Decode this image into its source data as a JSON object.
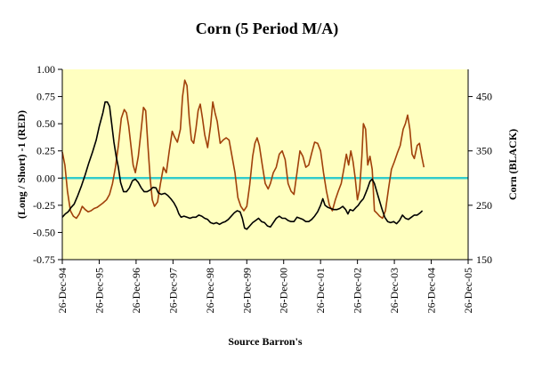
{
  "chart_data": {
    "type": "line",
    "title": "Corn (5 Period M/A)",
    "xlabel": "Source Barron's",
    "ylabel_left": "(Long / Short) -1 (RED)",
    "ylabel_right": "Corn (BLACK)",
    "x_tick_labels": [
      "26-Dec-94",
      "26-Dec-95",
      "26-Dec-96",
      "26-Dec-97",
      "26-Dec-98",
      "26-Dec-99",
      "26-Dec-00",
      "26-Dec-01",
      "26-Dec-02",
      "26-Dec-03",
      "26-Dec-04",
      "26-Dec-05"
    ],
    "xlim": [
      1994.98,
      2005.98
    ],
    "ylim_left": [
      -0.75,
      1.0
    ],
    "ylim_right": [
      150,
      500
    ],
    "y_ticks_left": [
      "1.00",
      "0.75",
      "0.50",
      "0.25",
      "0.00",
      "-0.25",
      "-0.50",
      "-0.75"
    ],
    "y_ticks_right": [
      "450",
      "350",
      "250",
      "150"
    ],
    "grid": false,
    "plot_background": "#ffffc0",
    "reference_line": {
      "y": 0.0,
      "color": "#33cccc"
    },
    "series": [
      {
        "name": "(Long / Short) -1 (RED)",
        "axis": "left",
        "color": "#a0400a",
        "points": [
          [
            1994.98,
            0.24
          ],
          [
            1995.05,
            0.12
          ],
          [
            1995.12,
            -0.12
          ],
          [
            1995.2,
            -0.3
          ],
          [
            1995.28,
            -0.35
          ],
          [
            1995.36,
            -0.37
          ],
          [
            1995.44,
            -0.33
          ],
          [
            1995.52,
            -0.26
          ],
          [
            1995.6,
            -0.29
          ],
          [
            1995.68,
            -0.31
          ],
          [
            1995.76,
            -0.3
          ],
          [
            1995.84,
            -0.28
          ],
          [
            1995.92,
            -0.27
          ],
          [
            1996.0,
            -0.25
          ],
          [
            1996.08,
            -0.23
          ],
          [
            1996.18,
            -0.2
          ],
          [
            1996.26,
            -0.15
          ],
          [
            1996.34,
            -0.05
          ],
          [
            1996.42,
            0.1
          ],
          [
            1996.5,
            0.3
          ],
          [
            1996.58,
            0.55
          ],
          [
            1996.66,
            0.63
          ],
          [
            1996.72,
            0.6
          ],
          [
            1996.78,
            0.48
          ],
          [
            1996.84,
            0.3
          ],
          [
            1996.9,
            0.12
          ],
          [
            1996.96,
            0.05
          ],
          [
            1997.04,
            0.2
          ],
          [
            1997.12,
            0.45
          ],
          [
            1997.18,
            0.65
          ],
          [
            1997.24,
            0.62
          ],
          [
            1997.3,
            0.3
          ],
          [
            1997.36,
            0.0
          ],
          [
            1997.42,
            -0.2
          ],
          [
            1997.48,
            -0.26
          ],
          [
            1997.56,
            -0.22
          ],
          [
            1997.64,
            -0.05
          ],
          [
            1997.72,
            0.1
          ],
          [
            1997.8,
            0.05
          ],
          [
            1997.88,
            0.25
          ],
          [
            1997.96,
            0.43
          ],
          [
            1998.02,
            0.38
          ],
          [
            1998.1,
            0.33
          ],
          [
            1998.18,
            0.45
          ],
          [
            1998.24,
            0.75
          ],
          [
            1998.3,
            0.9
          ],
          [
            1998.36,
            0.85
          ],
          [
            1998.42,
            0.55
          ],
          [
            1998.48,
            0.35
          ],
          [
            1998.54,
            0.32
          ],
          [
            1998.6,
            0.45
          ],
          [
            1998.66,
            0.62
          ],
          [
            1998.72,
            0.68
          ],
          [
            1998.78,
            0.55
          ],
          [
            1998.84,
            0.4
          ],
          [
            1998.92,
            0.28
          ],
          [
            1999.0,
            0.48
          ],
          [
            1999.06,
            0.7
          ],
          [
            1999.12,
            0.6
          ],
          [
            1999.18,
            0.52
          ],
          [
            1999.26,
            0.32
          ],
          [
            1999.34,
            0.35
          ],
          [
            1999.42,
            0.37
          ],
          [
            1999.5,
            0.35
          ],
          [
            1999.58,
            0.2
          ],
          [
            1999.66,
            0.05
          ],
          [
            1999.74,
            -0.18
          ],
          [
            1999.82,
            -0.26
          ],
          [
            1999.9,
            -0.3
          ],
          [
            1999.98,
            -0.26
          ],
          [
            2000.06,
            -0.06
          ],
          [
            2000.14,
            0.2
          ],
          [
            2000.2,
            0.32
          ],
          [
            2000.26,
            0.37
          ],
          [
            2000.32,
            0.3
          ],
          [
            2000.4,
            0.12
          ],
          [
            2000.48,
            -0.05
          ],
          [
            2000.56,
            -0.1
          ],
          [
            2000.62,
            -0.05
          ],
          [
            2000.7,
            0.05
          ],
          [
            2000.78,
            0.1
          ],
          [
            2000.86,
            0.22
          ],
          [
            2000.94,
            0.25
          ],
          [
            2001.02,
            0.17
          ],
          [
            2001.1,
            -0.05
          ],
          [
            2001.18,
            -0.12
          ],
          [
            2001.26,
            -0.15
          ],
          [
            2001.34,
            0.05
          ],
          [
            2001.42,
            0.25
          ],
          [
            2001.5,
            0.2
          ],
          [
            2001.58,
            0.1
          ],
          [
            2001.66,
            0.12
          ],
          [
            2001.74,
            0.23
          ],
          [
            2001.82,
            0.33
          ],
          [
            2001.9,
            0.32
          ],
          [
            2001.98,
            0.25
          ],
          [
            2002.06,
            0.05
          ],
          [
            2002.14,
            -0.12
          ],
          [
            2002.22,
            -0.25
          ],
          [
            2002.3,
            -0.3
          ],
          [
            2002.38,
            -0.2
          ],
          [
            2002.46,
            -0.12
          ],
          [
            2002.54,
            -0.05
          ],
          [
            2002.62,
            0.1
          ],
          [
            2002.68,
            0.22
          ],
          [
            2002.74,
            0.12
          ],
          [
            2002.8,
            0.25
          ],
          [
            2002.86,
            0.15
          ],
          [
            2002.92,
            0.0
          ],
          [
            2002.98,
            -0.2
          ],
          [
            2003.04,
            -0.1
          ],
          [
            2003.1,
            0.2
          ],
          [
            2003.14,
            0.5
          ],
          [
            2003.2,
            0.45
          ],
          [
            2003.26,
            0.12
          ],
          [
            2003.32,
            0.2
          ],
          [
            2003.38,
            0.08
          ],
          [
            2003.44,
            -0.3
          ],
          [
            2003.5,
            -0.32
          ],
          [
            2003.58,
            -0.35
          ],
          [
            2003.66,
            -0.37
          ],
          [
            2003.74,
            -0.3
          ],
          [
            2003.82,
            -0.1
          ],
          [
            2003.9,
            0.08
          ],
          [
            2003.98,
            0.15
          ],
          [
            2004.06,
            0.23
          ],
          [
            2004.14,
            0.3
          ],
          [
            2004.22,
            0.45
          ],
          [
            2004.28,
            0.5
          ],
          [
            2004.34,
            0.58
          ],
          [
            2004.4,
            0.45
          ],
          [
            2004.46,
            0.22
          ],
          [
            2004.52,
            0.18
          ],
          [
            2004.6,
            0.3
          ],
          [
            2004.66,
            0.32
          ],
          [
            2004.72,
            0.2
          ],
          [
            2004.78,
            0.1
          ]
        ]
      },
      {
        "name": "Corn (BLACK)",
        "axis": "right",
        "color": "#000000",
        "points": [
          [
            1994.98,
            228
          ],
          [
            1995.06,
            234
          ],
          [
            1995.14,
            238
          ],
          [
            1995.22,
            246
          ],
          [
            1995.3,
            252
          ],
          [
            1995.4,
            268
          ],
          [
            1995.5,
            286
          ],
          [
            1995.6,
            306
          ],
          [
            1995.7,
            328
          ],
          [
            1995.8,
            348
          ],
          [
            1995.9,
            370
          ],
          [
            1995.98,
            395
          ],
          [
            1996.08,
            420
          ],
          [
            1996.14,
            440
          ],
          [
            1996.2,
            440
          ],
          [
            1996.26,
            432
          ],
          [
            1996.32,
            400
          ],
          [
            1996.38,
            366
          ],
          [
            1996.44,
            340
          ],
          [
            1996.5,
            320
          ],
          [
            1996.56,
            292
          ],
          [
            1996.64,
            275
          ],
          [
            1996.72,
            275
          ],
          [
            1996.8,
            282
          ],
          [
            1996.88,
            295
          ],
          [
            1996.96,
            298
          ],
          [
            1997.04,
            292
          ],
          [
            1997.12,
            282
          ],
          [
            1997.2,
            275
          ],
          [
            1997.28,
            275
          ],
          [
            1997.36,
            278
          ],
          [
            1997.44,
            283
          ],
          [
            1997.52,
            282
          ],
          [
            1997.58,
            273
          ],
          [
            1997.66,
            270
          ],
          [
            1997.76,
            272
          ],
          [
            1997.84,
            268
          ],
          [
            1997.92,
            262
          ],
          [
            1998.0,
            255
          ],
          [
            1998.08,
            245
          ],
          [
            1998.14,
            234
          ],
          [
            1998.2,
            228
          ],
          [
            1998.28,
            230
          ],
          [
            1998.36,
            228
          ],
          [
            1998.44,
            226
          ],
          [
            1998.52,
            228
          ],
          [
            1998.6,
            228
          ],
          [
            1998.68,
            232
          ],
          [
            1998.76,
            230
          ],
          [
            1998.84,
            226
          ],
          [
            1998.92,
            224
          ],
          [
            1999.0,
            218
          ],
          [
            1999.08,
            216
          ],
          [
            1999.16,
            218
          ],
          [
            1999.24,
            215
          ],
          [
            1999.32,
            218
          ],
          [
            1999.4,
            220
          ],
          [
            1999.48,
            224
          ],
          [
            1999.56,
            230
          ],
          [
            1999.64,
            236
          ],
          [
            1999.72,
            240
          ],
          [
            1999.8,
            238
          ],
          [
            1999.86,
            226
          ],
          [
            1999.92,
            208
          ],
          [
            1999.98,
            206
          ],
          [
            2000.06,
            212
          ],
          [
            2000.14,
            218
          ],
          [
            2000.22,
            222
          ],
          [
            2000.3,
            226
          ],
          [
            2000.38,
            220
          ],
          [
            2000.46,
            218
          ],
          [
            2000.54,
            212
          ],
          [
            2000.62,
            210
          ],
          [
            2000.7,
            218
          ],
          [
            2000.78,
            226
          ],
          [
            2000.86,
            230
          ],
          [
            2000.94,
            226
          ],
          [
            2001.02,
            226
          ],
          [
            2001.1,
            222
          ],
          [
            2001.18,
            220
          ],
          [
            2001.26,
            220
          ],
          [
            2001.34,
            228
          ],
          [
            2001.42,
            226
          ],
          [
            2001.5,
            224
          ],
          [
            2001.58,
            220
          ],
          [
            2001.66,
            220
          ],
          [
            2001.74,
            224
          ],
          [
            2001.82,
            230
          ],
          [
            2001.9,
            238
          ],
          [
            2001.98,
            250
          ],
          [
            2002.04,
            262
          ],
          [
            2002.1,
            250
          ],
          [
            2002.18,
            246
          ],
          [
            2002.26,
            244
          ],
          [
            2002.34,
            242
          ],
          [
            2002.42,
            242
          ],
          [
            2002.5,
            244
          ],
          [
            2002.58,
            248
          ],
          [
            2002.66,
            242
          ],
          [
            2002.72,
            234
          ],
          [
            2002.78,
            242
          ],
          [
            2002.86,
            240
          ],
          [
            2002.94,
            246
          ],
          [
            2003.0,
            250
          ],
          [
            2003.06,
            256
          ],
          [
            2003.14,
            262
          ],
          [
            2003.2,
            272
          ],
          [
            2003.26,
            282
          ],
          [
            2003.32,
            294
          ],
          [
            2003.38,
            298
          ],
          [
            2003.44,
            290
          ],
          [
            2003.5,
            276
          ],
          [
            2003.56,
            262
          ],
          [
            2003.64,
            244
          ],
          [
            2003.72,
            228
          ],
          [
            2003.8,
            220
          ],
          [
            2003.88,
            218
          ],
          [
            2003.96,
            220
          ],
          [
            2004.04,
            216
          ],
          [
            2004.12,
            222
          ],
          [
            2004.2,
            232
          ],
          [
            2004.28,
            226
          ],
          [
            2004.36,
            224
          ],
          [
            2004.44,
            228
          ],
          [
            2004.52,
            232
          ],
          [
            2004.6,
            232
          ],
          [
            2004.68,
            236
          ],
          [
            2004.74,
            240
          ]
        ]
      }
    ]
  }
}
